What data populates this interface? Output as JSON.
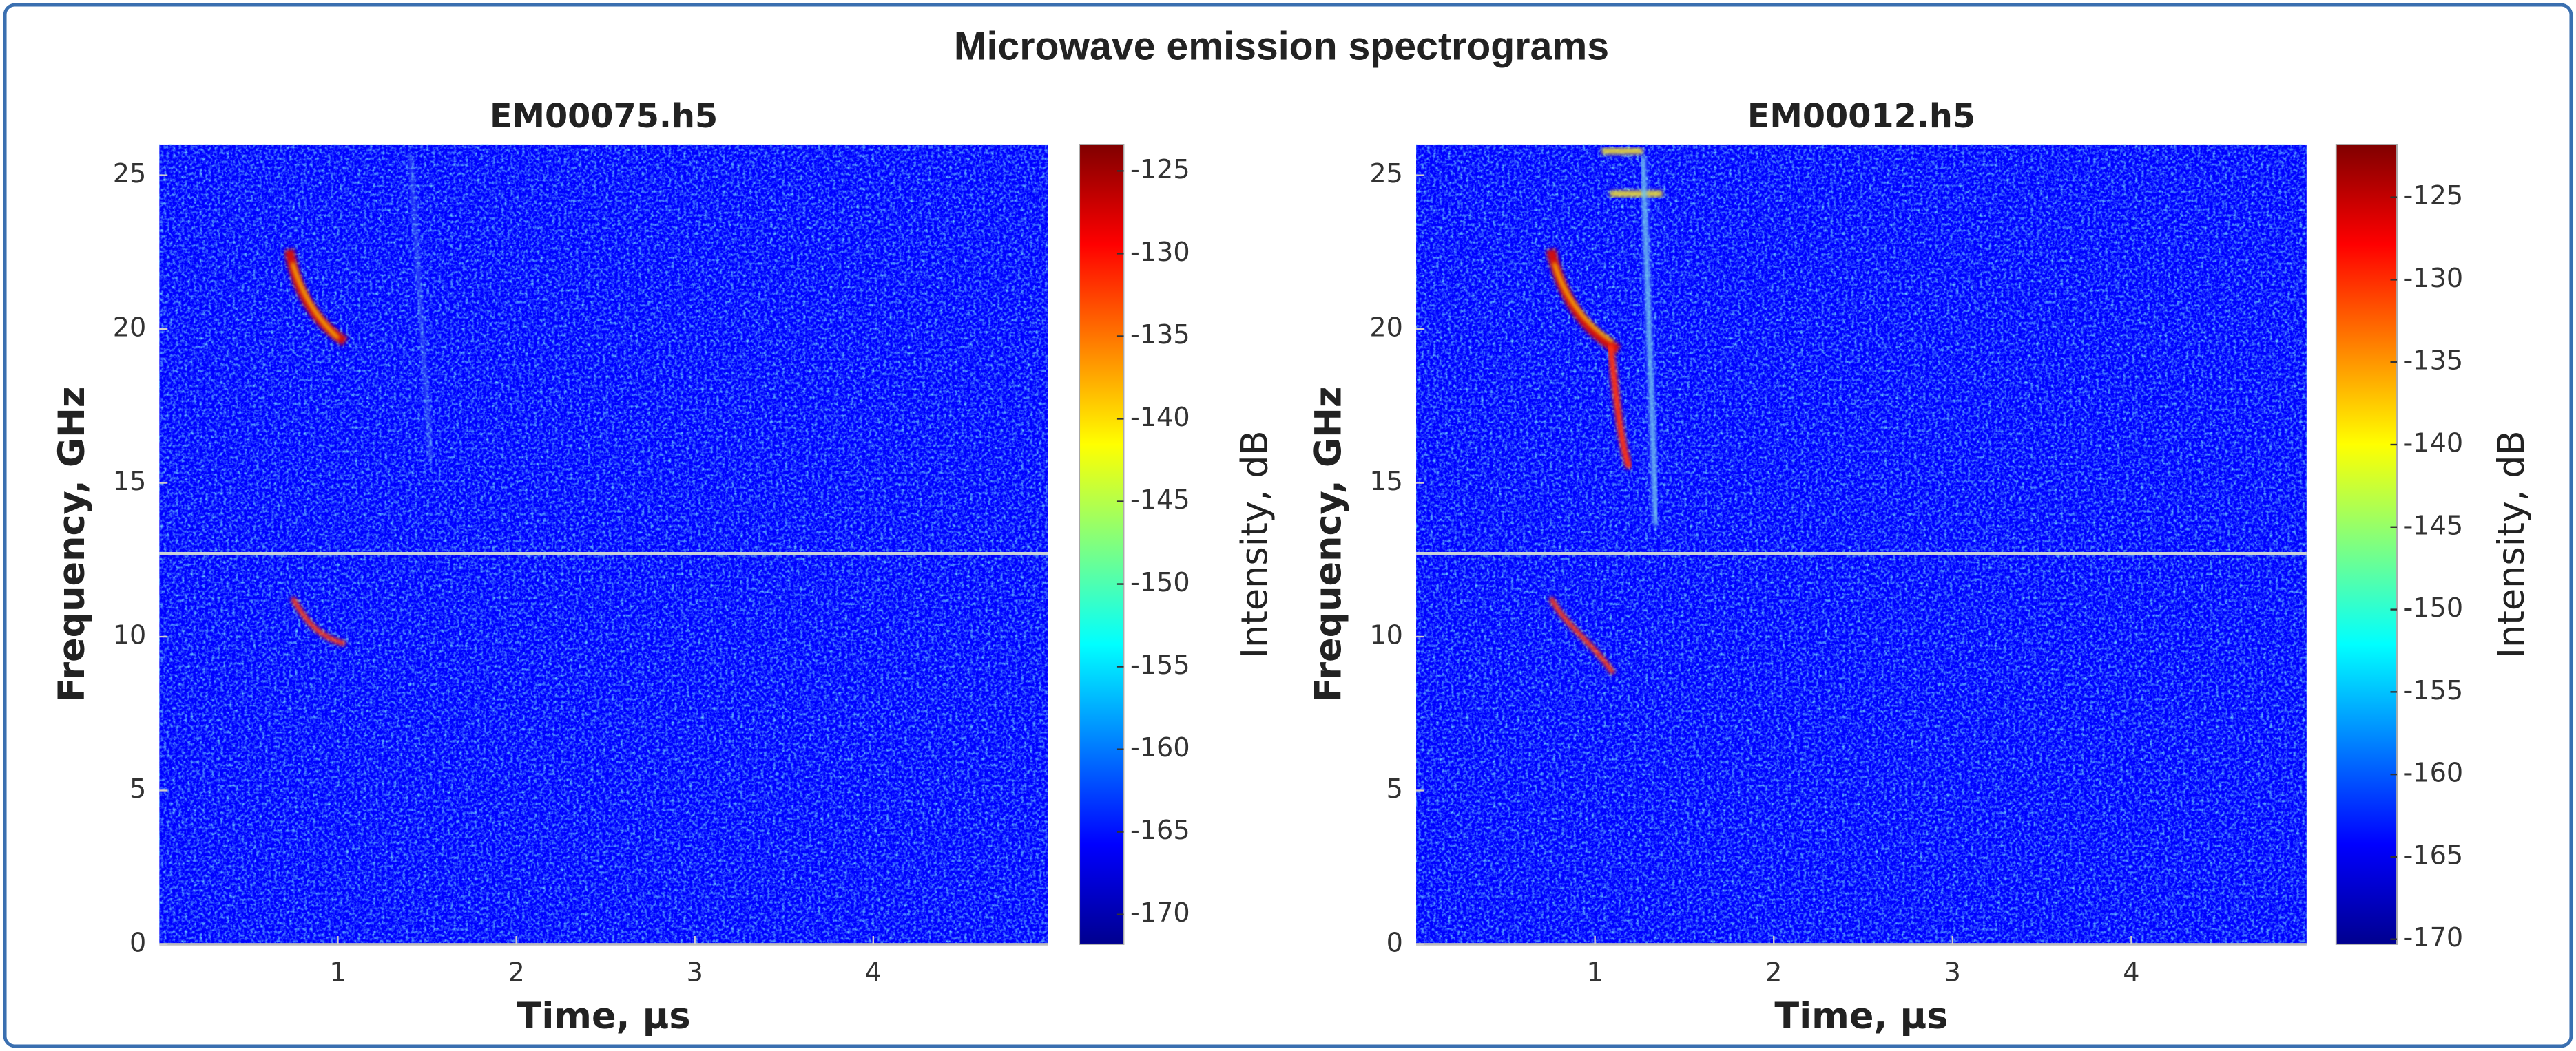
{
  "title": "Microwave emission spectrograms",
  "chart_data": [
    {
      "type": "heatmap",
      "title": "EM00075.h5",
      "xlabel": "Time, μs",
      "ylabel": "Frequency, GHz",
      "xlim": [
        0,
        4.98
      ],
      "ylim": [
        0,
        26
      ],
      "xticks": [
        1,
        2,
        3,
        4
      ],
      "yticks": [
        0,
        5,
        10,
        15,
        20,
        25
      ],
      "colormap": "jet",
      "colorbar": {
        "label": "Intensity, dB",
        "lim": [
          -171.8,
          -123.4
        ],
        "ticks": [
          -125,
          -130,
          -135,
          -140,
          -145,
          -150,
          -155,
          -160,
          -165,
          -170
        ]
      }
    },
    {
      "type": "heatmap",
      "title": "EM00012.h5",
      "xlabel": "Time, μs",
      "ylabel": "Frequency, GHz",
      "xlim": [
        0,
        4.98
      ],
      "ylim": [
        0,
        26
      ],
      "xticks": [
        1,
        2,
        3,
        4
      ],
      "yticks": [
        0,
        5,
        10,
        15,
        20,
        25
      ],
      "colormap": "jet",
      "colorbar": {
        "label": "Intensity, dB",
        "lim": [
          -170.3,
          -121.8
        ],
        "ticks": [
          -125,
          -130,
          -135,
          -140,
          -145,
          -150,
          -155,
          -160,
          -165,
          -170
        ]
      }
    }
  ]
}
